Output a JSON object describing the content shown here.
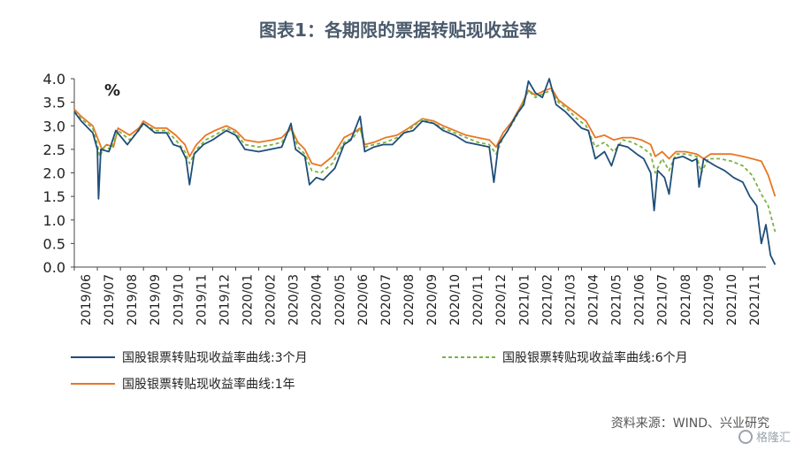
{
  "page_title": "图表1：各期限的票据转贴现收益率",
  "source_note": "资料来源：WIND、兴业研究",
  "watermark": "格隆汇",
  "chart_data": {
    "type": "line",
    "title": "图表1：各期限的票据转贴现收益率",
    "ylabel": "%",
    "ylim": [
      0,
      4
    ],
    "yticks": [
      "4.0",
      "3.5",
      "3.0",
      "2.5",
      "2.0",
      "1.5",
      "1.0",
      "0.5",
      "0.0"
    ],
    "grid": false,
    "legend_position": "bottom",
    "categories": [
      "2019/06",
      "2019/07",
      "2019/08",
      "2019/09",
      "2019/10",
      "2019/11",
      "2019/12",
      "2020/01",
      "2020/02",
      "2020/03",
      "2020/04",
      "2020/05",
      "2020/06",
      "2020/07",
      "2020/08",
      "2020/09",
      "2020/10",
      "2020/11",
      "2020/12",
      "2021/01",
      "2021/02",
      "2021/03",
      "2021/04",
      "2021/05",
      "2021/06",
      "2021/07",
      "2021/08",
      "2021/09",
      "2021/10",
      "2021/11"
    ],
    "series": [
      {
        "name": "国股银票转贴现收益率曲线:3个月",
        "color": "#1f4e79",
        "style": "solid",
        "points": [
          [
            0,
            3.3
          ],
          [
            0.3,
            3.1
          ],
          [
            0.8,
            2.85
          ],
          [
            1.0,
            2.5
          ],
          [
            1.05,
            1.45
          ],
          [
            1.15,
            2.5
          ],
          [
            1.5,
            2.45
          ],
          [
            1.8,
            2.9
          ],
          [
            2.3,
            2.6
          ],
          [
            2.7,
            2.85
          ],
          [
            3.0,
            3.05
          ],
          [
            3.5,
            2.85
          ],
          [
            4.0,
            2.85
          ],
          [
            4.3,
            2.6
          ],
          [
            4.6,
            2.55
          ],
          [
            4.85,
            2.3
          ],
          [
            5.0,
            1.75
          ],
          [
            5.2,
            2.4
          ],
          [
            5.6,
            2.6
          ],
          [
            6.0,
            2.7
          ],
          [
            6.3,
            2.8
          ],
          [
            6.6,
            2.9
          ],
          [
            7.0,
            2.8
          ],
          [
            7.4,
            2.5
          ],
          [
            8.0,
            2.45
          ],
          [
            8.5,
            2.5
          ],
          [
            9.0,
            2.55
          ],
          [
            9.4,
            3.05
          ],
          [
            9.6,
            2.5
          ],
          [
            10.0,
            2.35
          ],
          [
            10.2,
            1.75
          ],
          [
            10.5,
            1.9
          ],
          [
            10.8,
            1.85
          ],
          [
            11.3,
            2.1
          ],
          [
            11.7,
            2.6
          ],
          [
            12.0,
            2.7
          ],
          [
            12.4,
            3.2
          ],
          [
            12.6,
            2.45
          ],
          [
            13.0,
            2.55
          ],
          [
            13.4,
            2.6
          ],
          [
            13.8,
            2.6
          ],
          [
            14.3,
            2.85
          ],
          [
            14.7,
            2.9
          ],
          [
            15.1,
            3.1
          ],
          [
            15.6,
            3.05
          ],
          [
            16.0,
            2.9
          ],
          [
            16.5,
            2.8
          ],
          [
            17.0,
            2.65
          ],
          [
            17.5,
            2.6
          ],
          [
            18.0,
            2.55
          ],
          [
            18.2,
            1.8
          ],
          [
            18.4,
            2.6
          ],
          [
            18.8,
            2.9
          ],
          [
            19.2,
            3.25
          ],
          [
            19.5,
            3.45
          ],
          [
            19.7,
            3.95
          ],
          [
            20.0,
            3.7
          ],
          [
            20.3,
            3.6
          ],
          [
            20.6,
            4.0
          ],
          [
            20.9,
            3.45
          ],
          [
            21.3,
            3.3
          ],
          [
            21.7,
            3.1
          ],
          [
            22.0,
            2.95
          ],
          [
            22.3,
            2.9
          ],
          [
            22.6,
            2.3
          ],
          [
            23.0,
            2.45
          ],
          [
            23.3,
            2.15
          ],
          [
            23.6,
            2.6
          ],
          [
            24.0,
            2.55
          ],
          [
            24.4,
            2.4
          ],
          [
            24.7,
            2.3
          ],
          [
            25.0,
            2.0
          ],
          [
            25.15,
            1.2
          ],
          [
            25.3,
            2.05
          ],
          [
            25.6,
            1.9
          ],
          [
            25.8,
            1.55
          ],
          [
            26.0,
            2.3
          ],
          [
            26.4,
            2.35
          ],
          [
            26.8,
            2.25
          ],
          [
            27.0,
            2.3
          ],
          [
            27.1,
            1.7
          ],
          [
            27.3,
            2.3
          ],
          [
            27.8,
            2.15
          ],
          [
            28.2,
            2.05
          ],
          [
            28.6,
            1.9
          ],
          [
            29.0,
            1.8
          ],
          [
            29.3,
            1.5
          ],
          [
            29.6,
            1.3
          ],
          [
            29.8,
            0.5
          ],
          [
            30.0,
            0.9
          ],
          [
            30.2,
            0.25
          ],
          [
            30.4,
            0.05
          ]
        ]
      },
      {
        "name": "国股银票转贴现收益率曲线:6个月",
        "color": "#7cb342",
        "style": "dashed",
        "points": [
          [
            0,
            3.3
          ],
          [
            0.3,
            3.15
          ],
          [
            0.8,
            2.95
          ],
          [
            1.0,
            2.6
          ],
          [
            1.1,
            2.35
          ],
          [
            1.3,
            2.55
          ],
          [
            1.6,
            2.5
          ],
          [
            1.9,
            2.9
          ],
          [
            2.4,
            2.7
          ],
          [
            2.8,
            2.9
          ],
          [
            3.0,
            3.05
          ],
          [
            3.5,
            2.9
          ],
          [
            4.0,
            2.9
          ],
          [
            4.4,
            2.7
          ],
          [
            4.8,
            2.45
          ],
          [
            5.0,
            2.2
          ],
          [
            5.3,
            2.5
          ],
          [
            5.7,
            2.7
          ],
          [
            6.1,
            2.8
          ],
          [
            6.6,
            2.95
          ],
          [
            7.0,
            2.85
          ],
          [
            7.4,
            2.6
          ],
          [
            8.0,
            2.55
          ],
          [
            8.6,
            2.6
          ],
          [
            9.0,
            2.65
          ],
          [
            9.4,
            2.95
          ],
          [
            9.7,
            2.55
          ],
          [
            10.0,
            2.4
          ],
          [
            10.3,
            2.05
          ],
          [
            10.7,
            2.0
          ],
          [
            11.2,
            2.2
          ],
          [
            11.7,
            2.65
          ],
          [
            12.1,
            2.75
          ],
          [
            12.4,
            2.95
          ],
          [
            12.6,
            2.55
          ],
          [
            13.0,
            2.6
          ],
          [
            13.5,
            2.65
          ],
          [
            14.0,
            2.75
          ],
          [
            14.5,
            2.9
          ],
          [
            15.1,
            3.15
          ],
          [
            15.6,
            3.05
          ],
          [
            16.0,
            2.95
          ],
          [
            16.5,
            2.85
          ],
          [
            17.0,
            2.75
          ],
          [
            17.5,
            2.65
          ],
          [
            18.0,
            2.6
          ],
          [
            18.3,
            2.4
          ],
          [
            18.6,
            2.75
          ],
          [
            19.0,
            3.05
          ],
          [
            19.4,
            3.4
          ],
          [
            19.7,
            3.75
          ],
          [
            20.0,
            3.6
          ],
          [
            20.4,
            3.7
          ],
          [
            20.7,
            3.75
          ],
          [
            21.0,
            3.5
          ],
          [
            21.4,
            3.35
          ],
          [
            21.8,
            3.15
          ],
          [
            22.2,
            3.0
          ],
          [
            22.6,
            2.55
          ],
          [
            23.0,
            2.65
          ],
          [
            23.4,
            2.45
          ],
          [
            23.8,
            2.7
          ],
          [
            24.2,
            2.65
          ],
          [
            24.6,
            2.55
          ],
          [
            25.0,
            2.4
          ],
          [
            25.2,
            2.0
          ],
          [
            25.5,
            2.3
          ],
          [
            25.8,
            2.05
          ],
          [
            26.1,
            2.4
          ],
          [
            26.5,
            2.4
          ],
          [
            27.0,
            2.35
          ],
          [
            27.2,
            2.0
          ],
          [
            27.5,
            2.3
          ],
          [
            28.0,
            2.3
          ],
          [
            28.5,
            2.25
          ],
          [
            29.0,
            2.15
          ],
          [
            29.4,
            1.95
          ],
          [
            29.8,
            1.55
          ],
          [
            30.1,
            1.3
          ],
          [
            30.4,
            0.75
          ]
        ]
      },
      {
        "name": "国股银票转贴现收益率曲线:1年",
        "color": "#e87722",
        "style": "solid",
        "points": [
          [
            0,
            3.35
          ],
          [
            0.3,
            3.2
          ],
          [
            0.8,
            3.0
          ],
          [
            1.0,
            2.75
          ],
          [
            1.2,
            2.5
          ],
          [
            1.4,
            2.6
          ],
          [
            1.7,
            2.55
          ],
          [
            1.9,
            2.95
          ],
          [
            2.4,
            2.8
          ],
          [
            2.8,
            2.95
          ],
          [
            3.0,
            3.1
          ],
          [
            3.5,
            2.95
          ],
          [
            4.0,
            2.95
          ],
          [
            4.4,
            2.8
          ],
          [
            4.8,
            2.6
          ],
          [
            5.0,
            2.35
          ],
          [
            5.3,
            2.6
          ],
          [
            5.7,
            2.8
          ],
          [
            6.1,
            2.9
          ],
          [
            6.6,
            3.0
          ],
          [
            7.0,
            2.9
          ],
          [
            7.4,
            2.7
          ],
          [
            8.0,
            2.65
          ],
          [
            8.6,
            2.7
          ],
          [
            9.0,
            2.75
          ],
          [
            9.4,
            2.95
          ],
          [
            9.7,
            2.65
          ],
          [
            10.0,
            2.5
          ],
          [
            10.3,
            2.2
          ],
          [
            10.7,
            2.15
          ],
          [
            11.2,
            2.35
          ],
          [
            11.7,
            2.75
          ],
          [
            12.1,
            2.85
          ],
          [
            12.4,
            2.95
          ],
          [
            12.6,
            2.6
          ],
          [
            13.0,
            2.65
          ],
          [
            13.5,
            2.75
          ],
          [
            14.0,
            2.8
          ],
          [
            14.5,
            2.95
          ],
          [
            15.1,
            3.15
          ],
          [
            15.6,
            3.1
          ],
          [
            16.0,
            3.0
          ],
          [
            16.5,
            2.9
          ],
          [
            17.0,
            2.8
          ],
          [
            17.5,
            2.75
          ],
          [
            18.0,
            2.7
          ],
          [
            18.3,
            2.55
          ],
          [
            18.6,
            2.85
          ],
          [
            19.0,
            3.1
          ],
          [
            19.4,
            3.45
          ],
          [
            19.7,
            3.75
          ],
          [
            20.0,
            3.65
          ],
          [
            20.4,
            3.75
          ],
          [
            20.7,
            3.8
          ],
          [
            21.0,
            3.55
          ],
          [
            21.4,
            3.4
          ],
          [
            21.8,
            3.25
          ],
          [
            22.2,
            3.1
          ],
          [
            22.6,
            2.75
          ],
          [
            23.0,
            2.8
          ],
          [
            23.4,
            2.7
          ],
          [
            23.8,
            2.75
          ],
          [
            24.2,
            2.75
          ],
          [
            24.6,
            2.7
          ],
          [
            25.0,
            2.6
          ],
          [
            25.2,
            2.35
          ],
          [
            25.5,
            2.45
          ],
          [
            25.8,
            2.3
          ],
          [
            26.1,
            2.45
          ],
          [
            26.5,
            2.45
          ],
          [
            27.0,
            2.4
          ],
          [
            27.3,
            2.3
          ],
          [
            27.6,
            2.4
          ],
          [
            28.0,
            2.4
          ],
          [
            28.5,
            2.4
          ],
          [
            29.0,
            2.35
          ],
          [
            29.4,
            2.3
          ],
          [
            29.8,
            2.25
          ],
          [
            30.1,
            1.95
          ],
          [
            30.4,
            1.5
          ]
        ]
      }
    ]
  }
}
